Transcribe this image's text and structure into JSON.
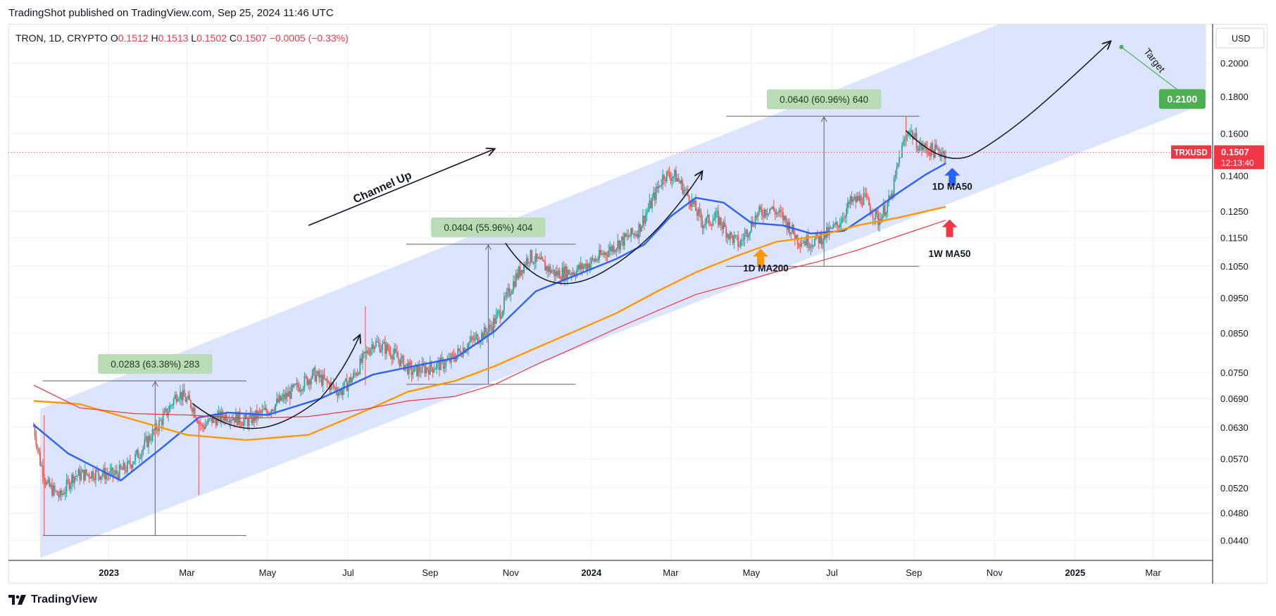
{
  "header": {
    "publisher": "TradingShot published on TradingView.com, Sep 25, 2024 11:46 UTC"
  },
  "footer": {
    "brand": "TradingView"
  },
  "chart_data": {
    "type": "candlestick",
    "symbol": "TRON, 1D, CRYPTO",
    "ohlc_legend": {
      "O_label": "O",
      "O": "0.1512",
      "H_label": "H",
      "H": "0.1513",
      "L_label": "L",
      "L": "0.1502",
      "C_label": "C",
      "C": "0.1507",
      "change": "−0.0005 (−0.33%)"
    },
    "currency_label": "USD",
    "y_scale": "log",
    "y_ticks": [
      "0.2000",
      "0.1800",
      "0.1600",
      "0.1400",
      "0.1250",
      "0.1150",
      "0.1050",
      "0.0950",
      "0.0850",
      "0.0750",
      "0.0690",
      "0.0630",
      "0.0570",
      "0.0520",
      "0.0480",
      "0.0440"
    ],
    "x_ticks": [
      {
        "label": "2023",
        "bold": true
      },
      {
        "label": "Mar"
      },
      {
        "label": "May"
      },
      {
        "label": "Jul"
      },
      {
        "label": "Sep"
      },
      {
        "label": "Nov"
      },
      {
        "label": "2024",
        "bold": true
      },
      {
        "label": "Mar"
      },
      {
        "label": "May"
      },
      {
        "label": "Jul"
      },
      {
        "label": "Sep"
      },
      {
        "label": "Nov"
      },
      {
        "label": "2025",
        "bold": true
      },
      {
        "label": "Mar"
      }
    ],
    "price_tag": {
      "symbol": "TRXUSD",
      "price": "0.1507",
      "countdown": "12:13:40"
    },
    "annotations": {
      "channel_label": "Channel Up",
      "target_label": "Target",
      "target_price": "0.2100",
      "ma50_label": "1D MA50",
      "ma200_label": "1D MA200",
      "w_ma50_label": "1W MA50",
      "rallies": [
        {
          "label": "0.0283 (63.38%) 283",
          "low": 0.0447,
          "high": 0.073
        },
        {
          "label": "0.0404 (55.96%) 404",
          "low": 0.0722,
          "high": 0.1126
        },
        {
          "label": "0.0640 (60.96%) 640",
          "low": 0.105,
          "high": 0.169
        }
      ]
    },
    "series": [
      {
        "name": "1D MA50",
        "color": "#2962ff",
        "points": [
          [
            "2022-11-05",
            0.0635
          ],
          [
            "2022-12-01",
            0.058
          ],
          [
            "2023-01-10",
            0.0532
          ],
          [
            "2023-02-10",
            0.059
          ],
          [
            "2023-03-10",
            0.065
          ],
          [
            "2023-04-01",
            0.066
          ],
          [
            "2023-05-01",
            0.0655
          ],
          [
            "2023-06-10",
            0.069
          ],
          [
            "2023-07-20",
            0.0745
          ],
          [
            "2023-08-20",
            0.0765
          ],
          [
            "2023-09-20",
            0.0785
          ],
          [
            "2023-10-20",
            0.0855
          ],
          [
            "2023-11-20",
            0.097
          ],
          [
            "2023-12-20",
            0.102
          ],
          [
            "2024-01-20",
            0.1075
          ],
          [
            "2024-02-10",
            0.1125
          ],
          [
            "2024-03-01",
            0.123
          ],
          [
            "2024-03-20",
            0.1305
          ],
          [
            "2024-04-10",
            0.1285
          ],
          [
            "2024-05-01",
            0.1205
          ],
          [
            "2024-05-25",
            0.1195
          ],
          [
            "2024-06-15",
            0.1165
          ],
          [
            "2024-07-10",
            0.1175
          ],
          [
            "2024-08-01",
            0.125
          ],
          [
            "2024-08-20",
            0.1325
          ],
          [
            "2024-09-10",
            0.1405
          ],
          [
            "2024-09-25",
            0.1455
          ]
        ]
      },
      {
        "name": "1D MA200",
        "color": "#ff9800",
        "points": [
          [
            "2022-11-05",
            0.0685
          ],
          [
            "2022-12-10",
            0.0678
          ],
          [
            "2023-01-20",
            0.0645
          ],
          [
            "2023-03-01",
            0.0615
          ],
          [
            "2023-04-15",
            0.0605
          ],
          [
            "2023-06-01",
            0.0615
          ],
          [
            "2023-07-15",
            0.0665
          ],
          [
            "2023-08-15",
            0.0705
          ],
          [
            "2023-09-20",
            0.073
          ],
          [
            "2023-10-20",
            0.0765
          ],
          [
            "2023-11-20",
            0.081
          ],
          [
            "2023-12-20",
            0.0855
          ],
          [
            "2024-01-20",
            0.0905
          ],
          [
            "2024-02-20",
            0.097
          ],
          [
            "2024-03-20",
            0.103
          ],
          [
            "2024-04-20",
            0.1085
          ],
          [
            "2024-05-20",
            0.1135
          ],
          [
            "2024-06-20",
            0.1155
          ],
          [
            "2024-07-20",
            0.1195
          ],
          [
            "2024-08-20",
            0.1225
          ],
          [
            "2024-09-25",
            0.1268
          ]
        ]
      },
      {
        "name": "1W MA50",
        "color": "#f23645",
        "points": [
          [
            "2022-11-05",
            0.072
          ],
          [
            "2022-12-10",
            0.067
          ],
          [
            "2023-01-20",
            0.0658
          ],
          [
            "2023-03-01",
            0.0655
          ],
          [
            "2023-04-15",
            0.0648
          ],
          [
            "2023-06-01",
            0.0652
          ],
          [
            "2023-07-15",
            0.0668
          ],
          [
            "2023-08-15",
            0.0685
          ],
          [
            "2023-09-20",
            0.0695
          ],
          [
            "2023-10-20",
            0.0722
          ],
          [
            "2023-11-20",
            0.0768
          ],
          [
            "2023-12-20",
            0.0812
          ],
          [
            "2024-01-20",
            0.0862
          ],
          [
            "2024-02-20",
            0.0912
          ],
          [
            "2024-03-20",
            0.096
          ],
          [
            "2024-04-20",
            0.0995
          ],
          [
            "2024-05-20",
            0.1032
          ],
          [
            "2024-06-20",
            0.1065
          ],
          [
            "2024-07-20",
            0.1105
          ],
          [
            "2024-08-20",
            0.1155
          ],
          [
            "2024-09-25",
            0.1215
          ]
        ]
      },
      {
        "name": "Price (close)",
        "color": "#131722",
        "points": [
          [
            "2022-11-05",
            0.0632
          ],
          [
            "2022-11-10",
            0.0565
          ],
          [
            "2022-11-15",
            0.0525
          ],
          [
            "2022-11-25",
            0.0505
          ],
          [
            "2022-12-05",
            0.054
          ],
          [
            "2022-12-20",
            0.0545
          ],
          [
            "2023-01-05",
            0.0542
          ],
          [
            "2023-01-15",
            0.0555
          ],
          [
            "2023-01-25",
            0.0585
          ],
          [
            "2023-02-05",
            0.0625
          ],
          [
            "2023-02-15",
            0.0665
          ],
          [
            "2023-02-22",
            0.0705
          ],
          [
            "2023-03-05",
            0.0675
          ],
          [
            "2023-03-12",
            0.063
          ],
          [
            "2023-03-20",
            0.0645
          ],
          [
            "2023-04-01",
            0.0655
          ],
          [
            "2023-04-15",
            0.0642
          ],
          [
            "2023-05-01",
            0.0665
          ],
          [
            "2023-05-15",
            0.0695
          ],
          [
            "2023-06-05",
            0.0745
          ],
          [
            "2023-06-15",
            0.0725
          ],
          [
            "2023-06-25",
            0.0705
          ],
          [
            "2023-07-05",
            0.074
          ],
          [
            "2023-07-20",
            0.0825
          ],
          [
            "2023-08-01",
            0.0805
          ],
          [
            "2023-08-18",
            0.0752
          ],
          [
            "2023-09-01",
            0.0762
          ],
          [
            "2023-09-15",
            0.0775
          ],
          [
            "2023-10-01",
            0.0825
          ],
          [
            "2023-10-15",
            0.0855
          ],
          [
            "2023-10-25",
            0.0915
          ],
          [
            "2023-11-05",
            0.1015
          ],
          [
            "2023-11-15",
            0.1085
          ],
          [
            "2023-11-25",
            0.1055
          ],
          [
            "2023-12-05",
            0.1025
          ],
          [
            "2023-12-20",
            0.1035
          ],
          [
            "2024-01-05",
            0.1075
          ],
          [
            "2024-01-20",
            0.1125
          ],
          [
            "2024-02-05",
            0.1175
          ],
          [
            "2024-02-15",
            0.128
          ],
          [
            "2024-02-25",
            0.1405
          ],
          [
            "2024-03-05",
            0.1395
          ],
          [
            "2024-03-15",
            0.1305
          ],
          [
            "2024-03-25",
            0.1205
          ],
          [
            "2024-04-05",
            0.1225
          ],
          [
            "2024-04-15",
            0.1155
          ],
          [
            "2024-04-22",
            0.1125
          ],
          [
            "2024-05-05",
            0.1235
          ],
          [
            "2024-05-15",
            0.1265
          ],
          [
            "2024-05-25",
            0.1225
          ],
          [
            "2024-06-05",
            0.1145
          ],
          [
            "2024-06-15",
            0.1135
          ],
          [
            "2024-06-25",
            0.1155
          ],
          [
            "2024-07-05",
            0.1195
          ],
          [
            "2024-07-15",
            0.1285
          ],
          [
            "2024-07-25",
            0.1305
          ],
          [
            "2024-08-05",
            0.1215
          ],
          [
            "2024-08-15",
            0.1305
          ],
          [
            "2024-08-22",
            0.1505
          ],
          [
            "2024-08-28",
            0.1625
          ],
          [
            "2024-09-05",
            0.1535
          ],
          [
            "2024-09-15",
            0.1515
          ],
          [
            "2024-09-25",
            0.1507
          ]
        ]
      }
    ]
  }
}
